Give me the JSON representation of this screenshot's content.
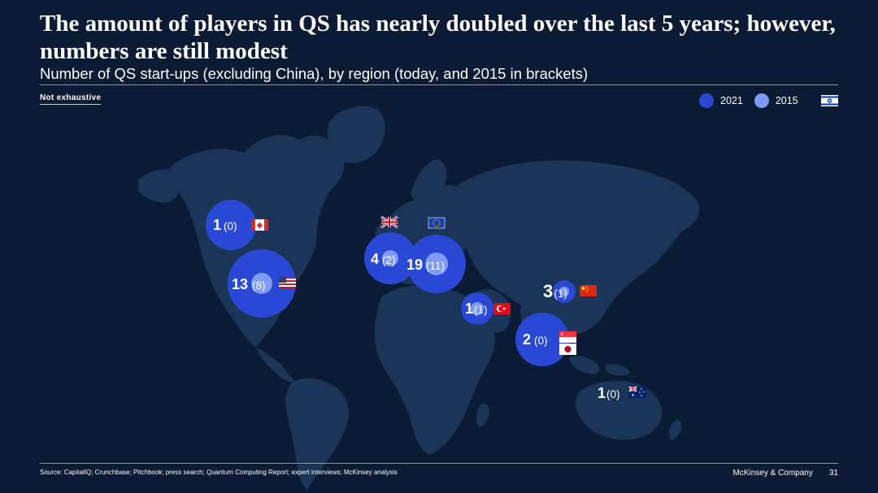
{
  "title": "The amount of players in QS has nearly doubled over the last 5 years; however, numbers are still modest",
  "subtitle": "Number of QS start-ups (excluding China), by region (today, and 2015 in brackets)",
  "tag": "Not exhaustive",
  "legend": [
    {
      "label": "2021",
      "color": "#2a48d6"
    },
    {
      "label": "2015",
      "color": "#7e9cf5"
    }
  ],
  "colors": {
    "background": "#0b1b33",
    "land": "#1a3557",
    "bubble_2021": "#2a48d6",
    "bubble_2015": "#7e9cf5"
  },
  "regions": [
    {
      "flag": "canada-flag",
      "value_2021": "1",
      "value_2015": "(0)"
    },
    {
      "flag": "usa-flag",
      "value_2021": "13",
      "value_2015": "(8)"
    },
    {
      "flag": "uk-flag",
      "value_2021": "4",
      "value_2015": "(2)"
    },
    {
      "flag": "eu-flag",
      "value_2021": "19",
      "value_2015": "(11)"
    },
    {
      "flag": "turkey-flag",
      "value_2021": "1",
      "value_2015": "(1)"
    },
    {
      "flag": "china-flag",
      "value_2021": "3",
      "value_2015": "(1)"
    },
    {
      "flag": "singapore-japan-flag",
      "value_2021": "2",
      "value_2015": "(0)"
    },
    {
      "flag": "australia-flag",
      "value_2021": "1",
      "value_2015": "(0)"
    },
    {
      "flag": "israel-flag",
      "value_2021": "",
      "value_2015": ""
    }
  ],
  "footer": {
    "source": "Source: CapitalIQ; Crunchbase; Pitchbook; press search; Quantum Computing Report; expert interviews; McKinsey analysis",
    "company": "McKinsey & Company",
    "page": "31"
  }
}
